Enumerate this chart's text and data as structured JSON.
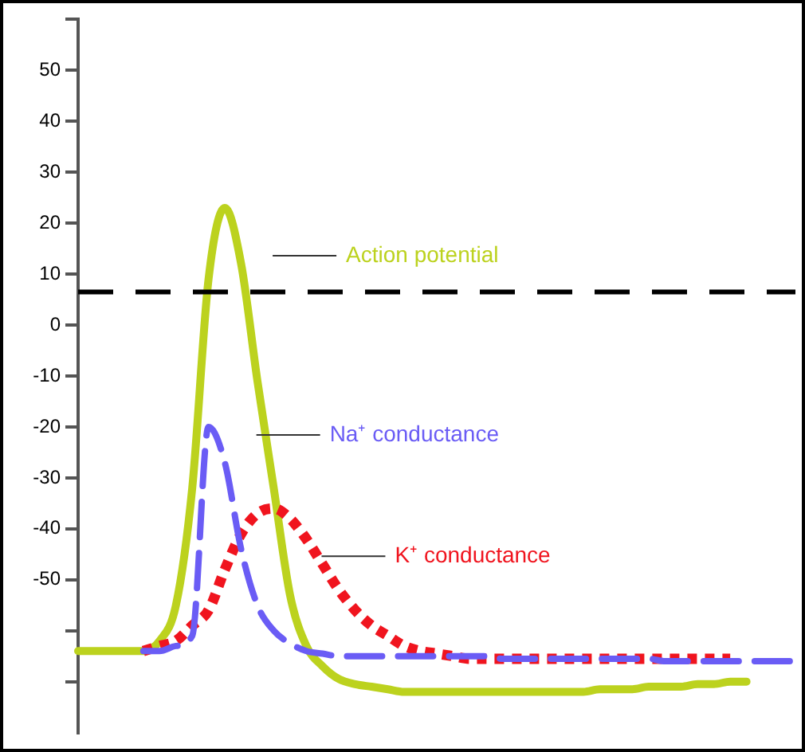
{
  "chart_data": {
    "type": "line",
    "categories": [
      null,
      null,
      null,
      null,
      null,
      null,
      null,
      null,
      null,
      null,
      null,
      null,
      null,
      null,
      null,
      null,
      null,
      null,
      null,
      null,
      null,
      null,
      null,
      null,
      null,
      null,
      null,
      null,
      null,
      null,
      null,
      null,
      null,
      null,
      null,
      null,
      null,
      null,
      null,
      null,
      null,
      null,
      null,
      null,
      null
    ],
    "ylim": [
      -80,
      60
    ],
    "yticks": [
      {
        "value": 60,
        "label": null
      },
      50,
      40,
      30,
      20,
      10,
      0,
      -10,
      -20,
      -30,
      -40,
      -50,
      {
        "value": -60,
        "label": null
      },
      {
        "value": -70,
        "label": null
      }
    ],
    "tick_labels": "y",
    "marker": "none",
    "legend": false,
    "ref_lines": [
      {
        "axis": "y",
        "value": 6.5,
        "color": "#000000",
        "line_style": "dashed"
      }
    ],
    "series": [
      {
        "name": "Action potential",
        "color": "#bcd21e",
        "line_style": "solid",
        "values": [
          -64,
          -64,
          -64,
          -64,
          -64,
          -62,
          -55,
          -32,
          9,
          23,
          12,
          -11,
          -32,
          -53,
          -63,
          -67,
          -69.5,
          -70.5,
          -71,
          -71.5,
          -72,
          -72,
          -72,
          -72,
          -72,
          -72,
          -72,
          -72,
          -72,
          -72,
          -72,
          -72,
          -71.5,
          -71.5,
          -71.5,
          -71,
          -71,
          -71,
          -70.5,
          -70.5,
          -70,
          -70,
          null,
          null,
          null
        ]
      },
      {
        "name": "Na⁺ conductance",
        "color": "#6a5cf5",
        "line_style": "dashed",
        "values": [
          null,
          null,
          null,
          null,
          -64,
          -64,
          -63,
          -61,
          -20,
          -27,
          -44,
          -55,
          -60,
          -62.5,
          -64,
          -64.5,
          -65,
          -65,
          -65,
          -65,
          -65,
          -65,
          -65,
          -65,
          -65,
          -65,
          -65.5,
          -65.5,
          -65.5,
          -65.5,
          -65.5,
          -65.5,
          -65.5,
          -65.5,
          -65.5,
          -65.5,
          -66,
          -66,
          -66,
          -66,
          -66,
          -66,
          -66,
          -66,
          -66
        ]
      },
      {
        "name": "K⁺ conductance",
        "color": "#f0141e",
        "line_style": "dotted",
        "values": [
          null,
          null,
          null,
          null,
          -64,
          -63,
          -62,
          -59,
          -56,
          -48,
          -41,
          -37,
          -36,
          -38,
          -42,
          -47,
          -52,
          -56,
          -59,
          -61,
          -63,
          -64,
          -64.5,
          -65,
          -65.5,
          -65.5,
          -65.5,
          -65.5,
          -65.5,
          -65.5,
          -65.5,
          -65.5,
          -65.5,
          -65.5,
          -65.5,
          -65.5,
          -65.5,
          -65.5,
          -65.5,
          -65.5,
          -65.5,
          null,
          null,
          null,
          null
        ]
      }
    ]
  }
}
